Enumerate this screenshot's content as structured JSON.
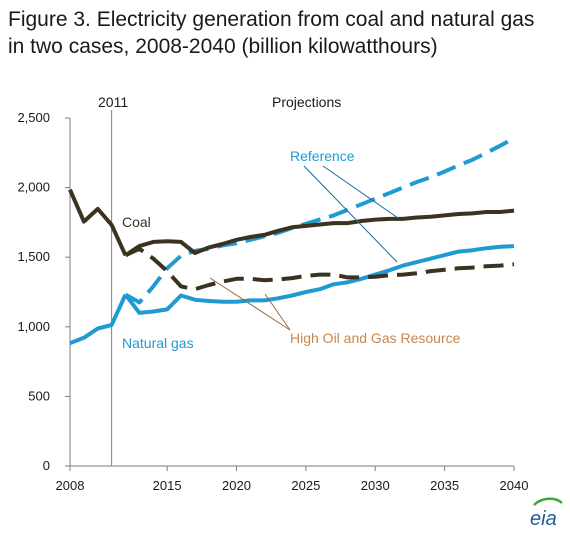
{
  "title": "Figure 3. Electricity generation from coal and natural gas in two cases, 2008-2040 (billion kilowatthours)",
  "logo_text": "eia",
  "colors": {
    "coal": "#3b3220",
    "gas": "#1f9ad3",
    "axis": "#7f7f7f",
    "hogr_label": "#c8874b",
    "logo": "#1f5d92",
    "logo_accent": "#3aa935"
  },
  "chart_data": {
    "type": "line",
    "title": "Figure 3. Electricity generation from coal and natural gas in two cases, 2008-2040 (billion kilowatthours)",
    "xlabel": "",
    "ylabel": "",
    "xlim": [
      2008,
      2040
    ],
    "ylim": [
      0,
      2500
    ],
    "x_ticks": [
      "2008",
      "2015",
      "2020",
      "2025",
      "2030",
      "2035",
      "2040"
    ],
    "y_ticks": [
      "0",
      "500",
      "1,000",
      "1,500",
      "2,000",
      "2,500"
    ],
    "grid": false,
    "divider_label": "2011",
    "projection_label": "Projections",
    "annotations": {
      "coal": "Coal",
      "natural_gas": "Natural gas",
      "reference": "Reference",
      "high_oil_gas": "High Oil and Gas Resource"
    },
    "series": [
      {
        "key": "coal_history",
        "style": "solid",
        "color_key": "coal",
        "x": [
          2008,
          2009,
          2010,
          2011,
          2012
        ],
        "values": [
          1985,
          1756,
          1847,
          1733,
          1514
        ]
      },
      {
        "key": "gas_history",
        "style": "solid",
        "color_key": "gas",
        "x": [
          2008,
          2009,
          2010,
          2011,
          2012
        ],
        "values": [
          883,
          921,
          988,
          1013,
          1231
        ]
      },
      {
        "key": "coal_reference",
        "style": "solid",
        "color_key": "coal",
        "x": [
          2012,
          2013,
          2014,
          2015,
          2016,
          2017,
          2018,
          2019,
          2020,
          2021,
          2022,
          2023,
          2024,
          2025,
          2026,
          2027,
          2028,
          2029,
          2030,
          2031,
          2032,
          2033,
          2034,
          2035,
          2036,
          2037,
          2038,
          2039,
          2040
        ],
        "values": [
          1514,
          1580,
          1610,
          1615,
          1610,
          1530,
          1570,
          1595,
          1625,
          1645,
          1660,
          1690,
          1715,
          1725,
          1735,
          1745,
          1745,
          1760,
          1770,
          1775,
          1775,
          1785,
          1790,
          1800,
          1810,
          1815,
          1825,
          1825,
          1835
        ]
      },
      {
        "key": "gas_reference",
        "style": "dashed",
        "color_key": "gas",
        "x": [
          2012,
          2013,
          2014,
          2015,
          2016,
          2017,
          2018,
          2019,
          2020,
          2021,
          2022,
          2023,
          2024,
          2025,
          2026,
          2027,
          2028,
          2029,
          2030,
          2031,
          2032,
          2033,
          2034,
          2035,
          2036,
          2037,
          2038,
          2039,
          2040
        ],
        "values": [
          1231,
          1175,
          1290,
          1420,
          1510,
          1545,
          1560,
          1585,
          1600,
          1625,
          1650,
          1675,
          1710,
          1740,
          1770,
          1800,
          1840,
          1880,
          1920,
          1960,
          2000,
          2040,
          2075,
          2115,
          2160,
          2200,
          2250,
          2300,
          2355
        ]
      },
      {
        "key": "coal_hogr",
        "style": "dashed",
        "color_key": "coal",
        "x": [
          2012,
          2013,
          2014,
          2015,
          2016,
          2017,
          2018,
          2019,
          2020,
          2021,
          2022,
          2023,
          2024,
          2025,
          2026,
          2027,
          2028,
          2029,
          2030,
          2031,
          2032,
          2033,
          2034,
          2035,
          2036,
          2037,
          2038,
          2039,
          2040
        ],
        "values": [
          1514,
          1560,
          1490,
          1400,
          1290,
          1270,
          1300,
          1325,
          1345,
          1345,
          1335,
          1340,
          1350,
          1365,
          1375,
          1375,
          1355,
          1355,
          1360,
          1370,
          1375,
          1385,
          1400,
          1410,
          1420,
          1425,
          1435,
          1440,
          1450
        ]
      },
      {
        "key": "gas_hogr",
        "style": "solid",
        "color_key": "gas",
        "x": [
          2012,
          2013,
          2014,
          2015,
          2016,
          2017,
          2018,
          2019,
          2020,
          2021,
          2022,
          2023,
          2024,
          2025,
          2026,
          2027,
          2028,
          2029,
          2030,
          2031,
          2032,
          2033,
          2034,
          2035,
          2036,
          2037,
          2038,
          2039,
          2040
        ],
        "values": [
          1231,
          1100,
          1110,
          1125,
          1225,
          1195,
          1185,
          1180,
          1180,
          1190,
          1190,
          1205,
          1225,
          1250,
          1270,
          1305,
          1320,
          1345,
          1375,
          1405,
          1440,
          1465,
          1490,
          1515,
          1540,
          1550,
          1565,
          1575,
          1580
        ]
      }
    ]
  }
}
